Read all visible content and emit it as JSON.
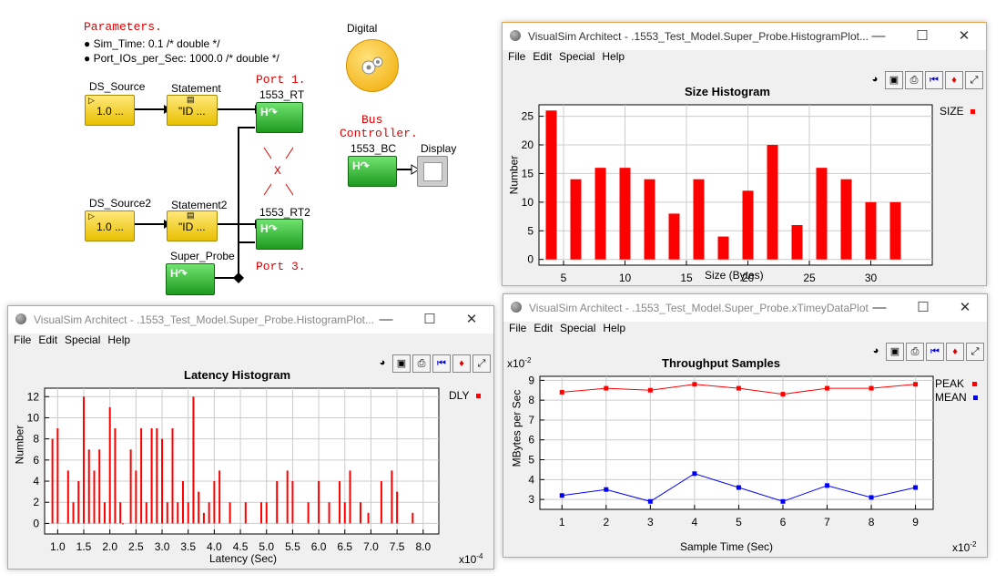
{
  "model": {
    "params_title": "Parameters.",
    "params": [
      "Sim_Time: 0.1 /* double */",
      "Port_IOs_per_Sec: 1000.0 /* double */"
    ],
    "digital_label": "Digital",
    "ds_source": {
      "label": "DS_Source",
      "value": "1.0 ..."
    },
    "statement": {
      "label": "Statement",
      "value": "\"ID ..."
    },
    "ds_source2": {
      "label": "DS_Source2",
      "value": "1.0 ..."
    },
    "statement2": {
      "label": "Statement2",
      "value": "\"ID ..."
    },
    "rt": {
      "label": "1553_RT"
    },
    "rt2": {
      "label": "1553_RT2"
    },
    "bc": {
      "label": "1553_BC"
    },
    "display": {
      "label": "Display"
    },
    "super_probe": {
      "label": "Super_Probe"
    },
    "port1": "Port 1.",
    "port3": "Port 3.",
    "bus_controller": [
      "Bus",
      "Controller."
    ],
    "x_mark": "X",
    "ann_colors": {
      "red": "#e00000"
    }
  },
  "menus": [
    "File",
    "Edit",
    "Special",
    "Help"
  ],
  "windows": {
    "size": {
      "title": "VisualSim Architect - .1553_Test_Model.Super_Probe.HistogramPlot..."
    },
    "latency": {
      "title": "VisualSim Architect - .1553_Test_Model.Super_Probe.HistogramPlot..."
    },
    "throughput": {
      "title": "VisualSim Architect - .1553_Test_Model.Super_Probe.xTimeyDataPlot"
    }
  },
  "chart_data": [
    {
      "type": "bar",
      "title": "Size Histogram",
      "xlabel": "Size (Bytes)",
      "ylabel": "Number",
      "legend": [
        "SIZE"
      ],
      "color": "#ff0000",
      "xlim": [
        3,
        35
      ],
      "ylim": [
        -1,
        27
      ],
      "xticks": [
        5,
        10,
        15,
        20,
        25,
        30
      ],
      "yticks": [
        0,
        5,
        10,
        15,
        20,
        25
      ],
      "x": [
        4,
        6,
        8,
        10,
        12,
        14,
        16,
        18,
        20,
        22,
        24,
        26,
        28,
        30,
        32
      ],
      "values": [
        26,
        14,
        16,
        16,
        14,
        8,
        14,
        4,
        12,
        20,
        6,
        16,
        14,
        10,
        10
      ]
    },
    {
      "type": "bar",
      "title": "Latency Histogram",
      "xlabel": "Latency (Sec)",
      "ylabel": "Number",
      "legend": [
        "DLY"
      ],
      "color": "#ff0000",
      "x_multiplier": "x10",
      "x_exponent": "-4",
      "xlim": [
        0.75,
        8.3
      ],
      "ylim": [
        -1,
        12.8
      ],
      "xticks": [
        "1.0",
        "1.5",
        "2.0",
        "2.5",
        "3.0",
        "3.5",
        "4.0",
        "4.5",
        "5.0",
        "5.5",
        "6.0",
        "6.5",
        "7.0",
        "7.5",
        "8.0"
      ],
      "yticks": [
        0,
        2,
        4,
        6,
        8,
        10,
        12
      ],
      "x": [
        0.9,
        1.0,
        1.2,
        1.3,
        1.4,
        1.5,
        1.6,
        1.7,
        1.8,
        1.9,
        2.0,
        2.1,
        2.2,
        2.25,
        2.4,
        2.5,
        2.6,
        2.7,
        2.8,
        2.9,
        3.0,
        3.1,
        3.2,
        3.3,
        3.4,
        3.5,
        3.6,
        3.7,
        3.8,
        3.9,
        4.0,
        4.1,
        4.3,
        4.6,
        4.9,
        5.0,
        5.2,
        5.4,
        5.5,
        5.8,
        6.0,
        6.2,
        6.4,
        6.5,
        6.6,
        6.8,
        6.95,
        7.2,
        7.4,
        7.5,
        7.8
      ],
      "values": [
        8,
        9,
        5,
        2,
        4,
        12,
        7,
        5,
        7,
        2,
        11,
        9,
        2,
        0,
        7,
        5,
        9,
        2,
        9,
        9,
        8,
        2,
        9,
        2,
        4,
        2,
        12,
        3,
        1,
        2,
        4,
        5,
        2,
        2,
        2,
        2,
        4,
        5,
        4,
        2,
        4,
        2,
        4,
        2,
        5,
        2,
        1,
        4,
        5,
        3,
        1
      ]
    },
    {
      "type": "line",
      "title": "Throughput Samples",
      "xlabel": "Sample Time (Sec)",
      "ylabel": "MBytes per Sec",
      "x_multiplier": "x10",
      "x_exponent": "-2",
      "y_multiplier": "x10",
      "y_exponent": "-2",
      "xlim": [
        0.5,
        9.4
      ],
      "ylim": [
        2.5,
        9.2
      ],
      "xticks": [
        1,
        2,
        3,
        4,
        5,
        6,
        7,
        8,
        9
      ],
      "yticks": [
        3,
        4,
        5,
        6,
        7,
        8,
        9
      ],
      "x": [
        1,
        2,
        3,
        4,
        5,
        6,
        7,
        8,
        9
      ],
      "series": [
        {
          "name": "PEAK",
          "color": "#ff0000",
          "values": [
            8.4,
            8.6,
            8.5,
            8.8,
            8.6,
            8.3,
            8.6,
            8.6,
            8.8
          ]
        },
        {
          "name": "MEAN",
          "color": "#0000ff",
          "values": [
            3.2,
            3.5,
            2.9,
            4.3,
            3.6,
            2.9,
            3.7,
            3.1,
            3.6
          ]
        }
      ]
    }
  ]
}
